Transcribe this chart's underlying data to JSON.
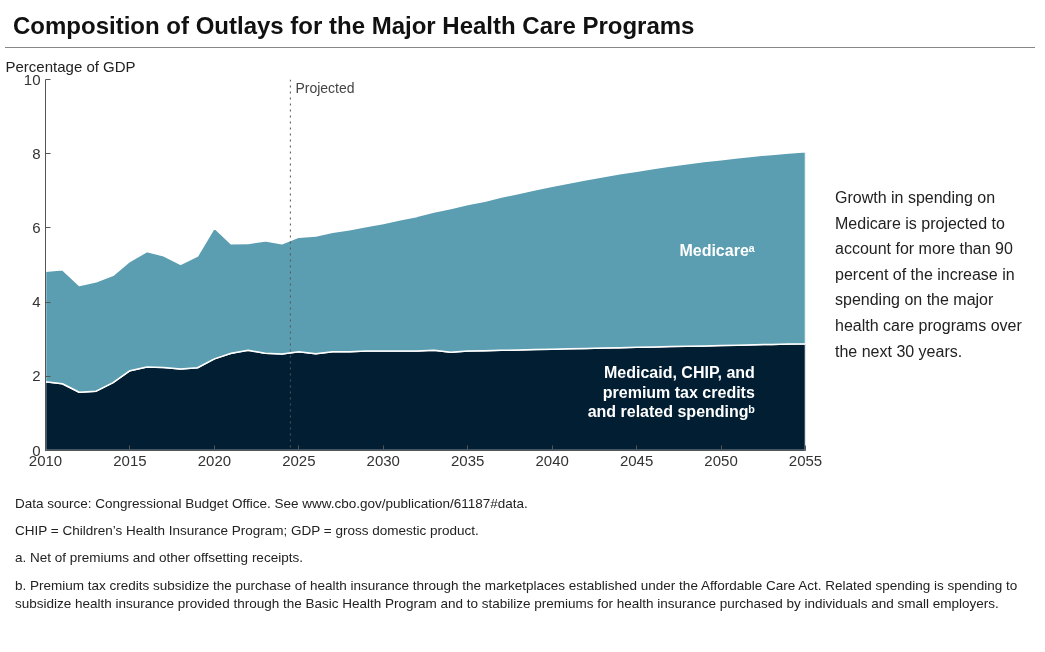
{
  "chart_data": {
    "type": "area",
    "stacked": true,
    "title": "Composition of Outlays for the Major Health Care Programs",
    "ylabel": "Percentage of GDP",
    "x": [
      2010,
      2011,
      2012,
      2013,
      2014,
      2015,
      2016,
      2017,
      2018,
      2019,
      2020,
      2021,
      2022,
      2023,
      2024,
      2025,
      2026,
      2027,
      2028,
      2029,
      2030,
      2031,
      2032,
      2033,
      2034,
      2035,
      2036,
      2037,
      2038,
      2039,
      2040,
      2041,
      2042,
      2043,
      2044,
      2045,
      2046,
      2047,
      2048,
      2049,
      2050,
      2051,
      2052,
      2053,
      2054,
      2055
    ],
    "series": [
      {
        "name": "Medicaid, CHIP, and premium tax credits and related spendingᵇ",
        "color": "#021e33",
        "values": [
          1.85,
          1.8,
          1.57,
          1.6,
          1.83,
          2.15,
          2.25,
          2.24,
          2.2,
          2.23,
          2.47,
          2.62,
          2.7,
          2.62,
          2.6,
          2.66,
          2.61,
          2.66,
          2.66,
          2.68,
          2.68,
          2.68,
          2.68,
          2.7,
          2.65,
          2.68,
          2.69,
          2.7,
          2.71,
          2.72,
          2.73,
          2.74,
          2.75,
          2.76,
          2.77,
          2.78,
          2.79,
          2.8,
          2.81,
          2.82,
          2.83,
          2.84,
          2.85,
          2.86,
          2.87,
          2.88
        ]
      },
      {
        "name": "Medicareᵃ",
        "color": "#5b9eb1",
        "values": [
          2.98,
          3.07,
          2.88,
          2.95,
          2.89,
          2.95,
          3.11,
          3.01,
          2.82,
          3.01,
          3.53,
          2.95,
          2.88,
          3.03,
          2.97,
          3.09,
          3.17,
          3.22,
          3.29,
          3.36,
          3.44,
          3.54,
          3.63,
          3.73,
          3.87,
          3.95,
          4.03,
          4.13,
          4.22,
          4.31,
          4.39,
          4.47,
          4.55,
          4.62,
          4.69,
          4.75,
          4.81,
          4.87,
          4.92,
          4.97,
          5.01,
          5.05,
          5.09,
          5.12,
          5.15,
          5.17
        ]
      }
    ],
    "xlim": [
      2010,
      2055
    ],
    "xticks": [
      2010,
      2015,
      2020,
      2025,
      2030,
      2035,
      2040,
      2045,
      2050,
      2055
    ],
    "ylim": [
      0,
      10
    ],
    "yticks": [
      0,
      2,
      4,
      6,
      8,
      10
    ],
    "grid": false,
    "ref_lines": [
      {
        "axis": "x",
        "value": 2024.5,
        "label": "Projected",
        "color": "#555555",
        "line_style": "dotted"
      }
    ],
    "annotations": [
      "Growth in spending on Medicare is projected to account for more than 90 percent of the increase in spending on the major health care programs over the next 30 years.",
      "Data source: Congressional Budget Office. See www.cbo.gov/publication/61187#data.",
      "CHIP = Children’s Health Insurance Program; GDP = gross domestic product.",
      "a. Net of premiums and other offsetting receipts.",
      "b. Premium tax credits subsidize the purchase of health insurance through the marketplaces established under the Affordable Care Act. Related spending is spending to subsidize health insurance provided through the Basic Health Program and to stabilize premiums for health insurance purchased by individuals and small employers."
    ]
  }
}
